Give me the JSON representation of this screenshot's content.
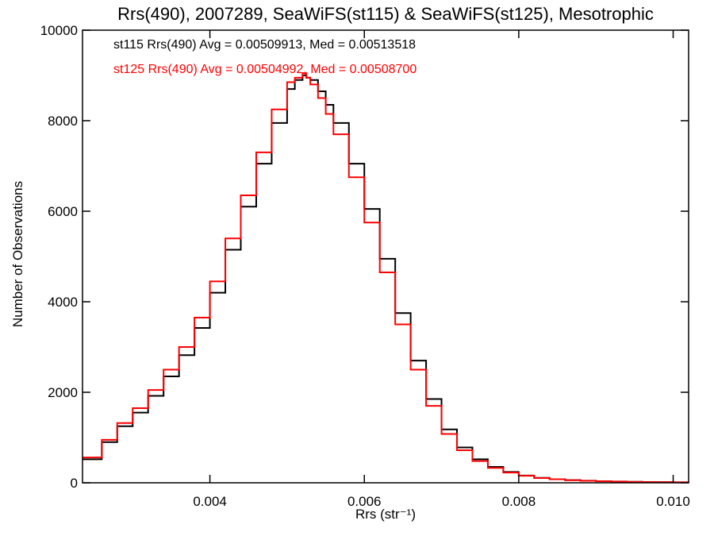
{
  "chart_data": {
    "type": "line",
    "step": true,
    "title": "Rrs(490), 2007289, SeaWiFS(st115) & SeaWiFS(st125), Mesotrophic",
    "xlabel": "Rrs (str⁻¹)",
    "ylabel": "Number of Observations",
    "xlim": [
      0.00235,
      0.0102
    ],
    "ylim": [
      0,
      10000
    ],
    "x_ticks": [
      0.004,
      0.006,
      0.008,
      0.01
    ],
    "x_tick_labels": [
      "0.004",
      "0.006",
      "0.008",
      "0.010"
    ],
    "y_ticks": [
      0,
      2000,
      4000,
      6000,
      8000,
      10000
    ],
    "y_tick_labels": [
      "0",
      "2000",
      "4000",
      "6000",
      "8000",
      "10000"
    ],
    "grid": false,
    "legend_position": "top-left",
    "series": [
      {
        "name": "st115",
        "color": "#000000",
        "annotation": "st115 Rrs(490) Avg = 0.00509913, Med = 0.00513518",
        "x": [
          0.00235,
          0.0026,
          0.0028,
          0.003,
          0.0032,
          0.0034,
          0.0036,
          0.0038,
          0.004,
          0.0042,
          0.0044,
          0.0046,
          0.0048,
          0.005,
          0.0051,
          0.0052,
          0.00525,
          0.0053,
          0.0054,
          0.0055,
          0.0056,
          0.0058,
          0.006,
          0.0062,
          0.0064,
          0.0066,
          0.0068,
          0.007,
          0.0072,
          0.0074,
          0.0076,
          0.0078,
          0.008,
          0.0082,
          0.0084,
          0.0086,
          0.0088,
          0.009,
          0.0092,
          0.0094,
          0.0096,
          0.0098,
          0.01,
          0.0102
        ],
        "y": [
          520,
          900,
          1250,
          1550,
          1920,
          2350,
          2820,
          3420,
          4200,
          5150,
          6100,
          7050,
          7950,
          8700,
          8900,
          9000,
          8950,
          8900,
          8650,
          8350,
          7950,
          7050,
          6050,
          4950,
          3750,
          2700,
          1850,
          1180,
          780,
          520,
          350,
          240,
          160,
          110,
          80,
          60,
          45,
          35,
          28,
          22,
          18,
          15,
          12,
          10
        ]
      },
      {
        "name": "st125",
        "color": "#ff0000",
        "annotation": "st125 Rrs(490) Avg = 0.00504992, Med = 0.00508700",
        "x": [
          0.00235,
          0.0026,
          0.0028,
          0.003,
          0.0032,
          0.0034,
          0.0036,
          0.0038,
          0.004,
          0.0042,
          0.0044,
          0.0046,
          0.0048,
          0.005,
          0.0051,
          0.0052,
          0.00525,
          0.0053,
          0.0054,
          0.0055,
          0.0056,
          0.0058,
          0.006,
          0.0062,
          0.0064,
          0.0066,
          0.0068,
          0.007,
          0.0072,
          0.0074,
          0.0076,
          0.0078,
          0.008,
          0.0082,
          0.0084,
          0.0086,
          0.0088,
          0.009,
          0.0092,
          0.0094,
          0.0096,
          0.0098,
          0.01,
          0.0102
        ],
        "y": [
          560,
          950,
          1320,
          1650,
          2050,
          2500,
          3000,
          3650,
          4450,
          5400,
          6350,
          7300,
          8250,
          8850,
          8950,
          9050,
          8950,
          8800,
          8500,
          8150,
          7700,
          6750,
          5750,
          4650,
          3500,
          2500,
          1700,
          1080,
          720,
          480,
          330,
          225,
          155,
          105,
          78,
          58,
          43,
          33,
          26,
          20,
          16,
          13,
          11,
          9
        ]
      }
    ]
  }
}
